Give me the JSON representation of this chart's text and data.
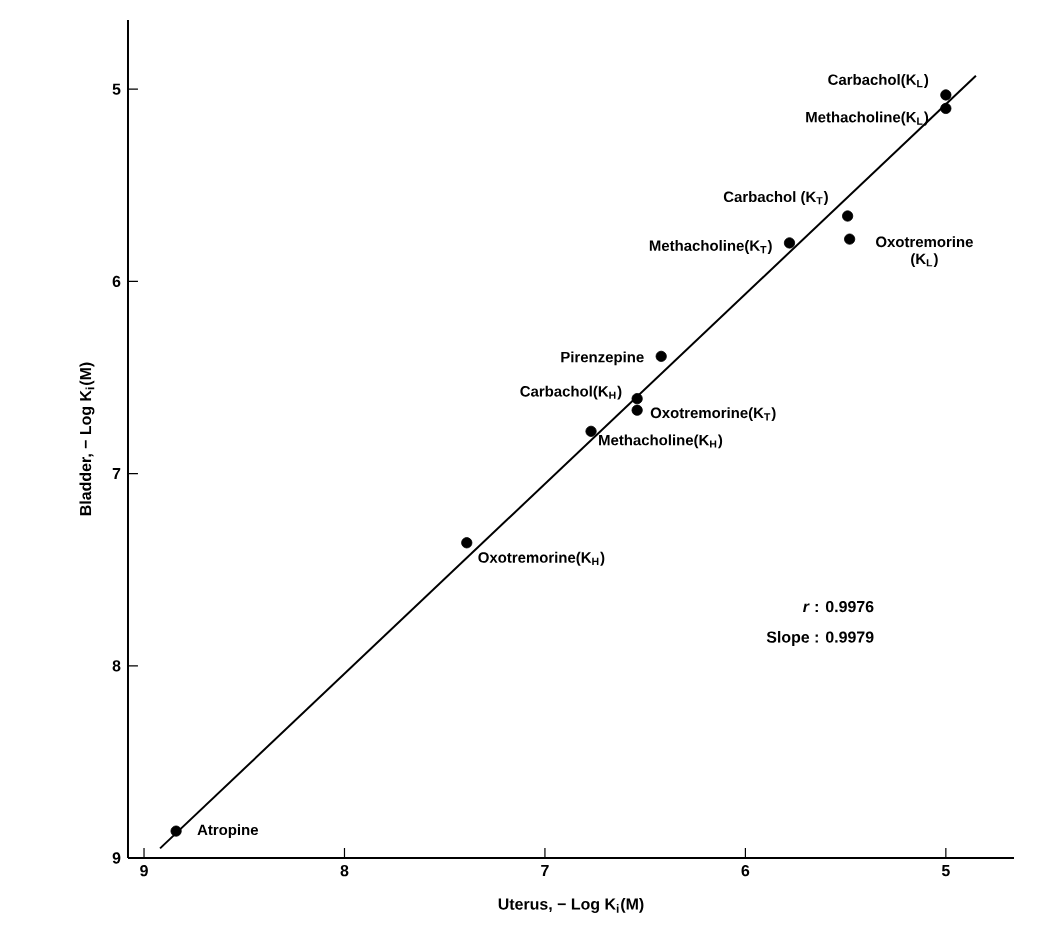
{
  "chart_data": {
    "type": "scatter",
    "xlabel": "Uterus, − Log K$_{i}$(M)",
    "ylabel": "Bladder, − Log K$_{i}$(M)",
    "xlim": [
      9.08,
      4.66
    ],
    "ylim": [
      9,
      4.64
    ],
    "xticks": [
      9,
      8,
      7,
      6,
      5
    ],
    "yticks": [
      5,
      6,
      7,
      8,
      9
    ],
    "series": [
      {
        "color": "#000000",
        "marker": "circle",
        "x": [
          5.0,
          5.0,
          5.49,
          5.48,
          5.78,
          6.42,
          6.54,
          6.54,
          6.77,
          7.39,
          8.84
        ],
        "values": [
          5.03,
          5.1,
          5.66,
          5.78,
          5.8,
          6.39,
          6.61,
          6.67,
          6.78,
          7.36,
          8.86
        ]
      },
      {
        "type": "line",
        "color": "#000000",
        "marker": "none",
        "line_style": "solid",
        "x": [
          8.92,
          4.85
        ],
        "values": [
          8.95,
          4.93
        ]
      }
    ],
    "annotations": [
      {
        "text": "Carbachol(K$_{L}$)",
        "x": 5.0,
        "y": 5.03
      },
      {
        "text": "Methacholine(K$_{L}$)",
        "x": 5.0,
        "y": 5.1
      },
      {
        "text": "Carbachol (K$_{T}$)",
        "x": 5.49,
        "y": 5.66
      },
      {
        "text": "Oxotremorine (K$_{L}$)",
        "x": 5.48,
        "y": 5.78
      },
      {
        "text": "Methacholine(K$_{T}$)",
        "x": 5.78,
        "y": 5.8
      },
      {
        "text": "Pirenzepine",
        "x": 6.42,
        "y": 6.39
      },
      {
        "text": "Carbachol(K$_{H}$)",
        "x": 6.54,
        "y": 6.61
      },
      {
        "text": "Oxotremorine(K$_{T}$)",
        "x": 6.54,
        "y": 6.67
      },
      {
        "text": "Methacholine(K$_{H}$)",
        "x": 6.77,
        "y": 6.78
      },
      {
        "text": "Oxotremorine(K$_{H}$)",
        "x": 7.39,
        "y": 7.36
      },
      {
        "text": "Atropine",
        "x": 8.84,
        "y": 8.86
      },
      "*r* : 0.9976",
      "Slope : 0.9979"
    ]
  }
}
